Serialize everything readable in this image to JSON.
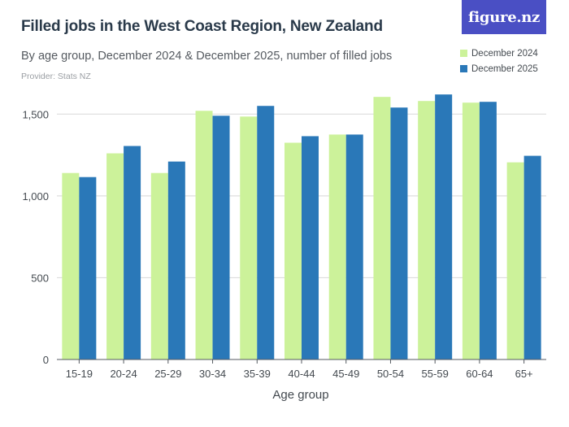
{
  "header": {
    "title": "Filled jobs in the West Coast Region, New Zealand",
    "subtitle": "By age group, December 2024 & December 2025, number of filled jobs",
    "provider": "Provider: Stats NZ",
    "logo": "figure.nz"
  },
  "colors": {
    "series_1": "#ccf29a",
    "series_2": "#2a78b8",
    "gridline": "#d8d8d8",
    "axis_text": "#444a50",
    "logo_bg": "#4a4fc4"
  },
  "chart_data": {
    "type": "bar",
    "title": "Filled jobs in the West Coast Region, New Zealand",
    "subtitle": "By age group, December 2024 & December 2025, number of filled jobs",
    "xlabel": "Age group",
    "ylabel": "",
    "ylim": [
      0,
      1750
    ],
    "yticks": [
      0,
      500,
      1000,
      1500
    ],
    "ytick_labels": [
      "0",
      "500",
      "1,000",
      "1,500"
    ],
    "grid": true,
    "legend_position": "top-right",
    "categories": [
      "15-19",
      "20-24",
      "25-29",
      "30-34",
      "35-39",
      "40-44",
      "45-49",
      "50-54",
      "55-59",
      "60-64",
      "65+"
    ],
    "series": [
      {
        "name": "December 2024",
        "color": "#ccf29a",
        "values": [
          1140,
          1260,
          1140,
          1520,
          1485,
          1325,
          1375,
          1605,
          1580,
          1570,
          1205
        ]
      },
      {
        "name": "December 2025",
        "color": "#2a78b8",
        "values": [
          1115,
          1305,
          1210,
          1490,
          1550,
          1365,
          1375,
          1540,
          1620,
          1575,
          1245
        ]
      }
    ]
  }
}
